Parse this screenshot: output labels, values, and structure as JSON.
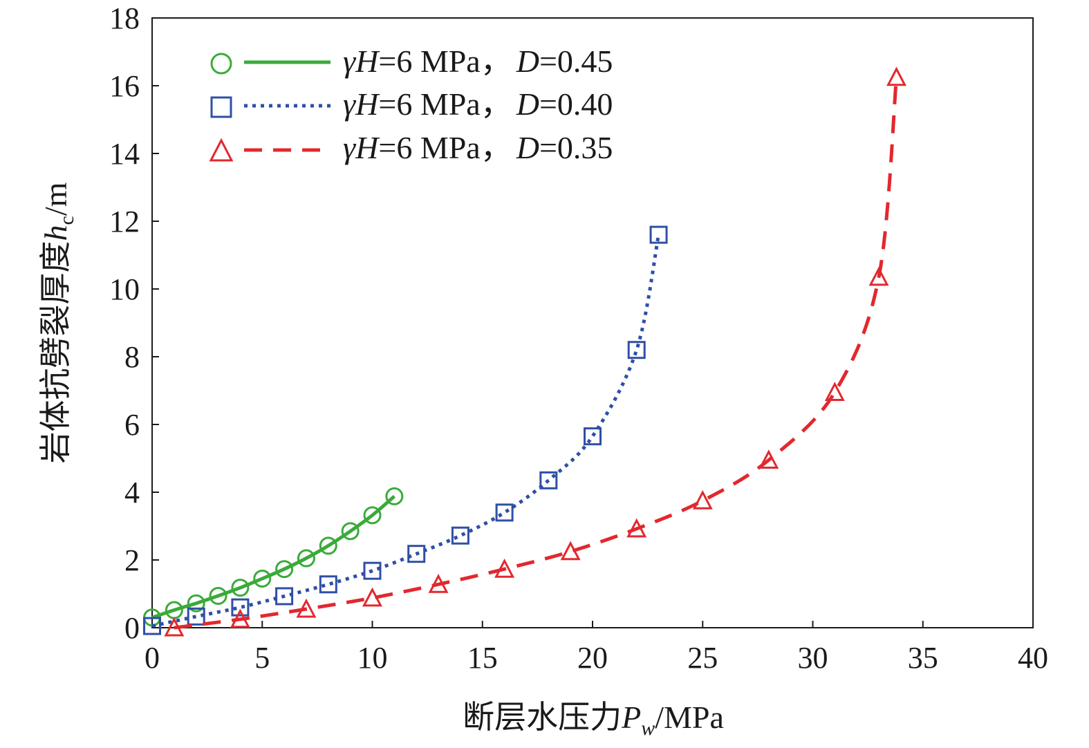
{
  "chart_data": {
    "type": "line",
    "xlabel": {
      "text": "断层水压力",
      "symbol": "P",
      "subscript": "w",
      "unit": "/MPa"
    },
    "ylabel": {
      "text": "岩体抗劈裂厚度",
      "symbol": "h",
      "subscript": "c",
      "unit": "/m"
    },
    "xlim": [
      0,
      40
    ],
    "ylim": [
      0,
      18
    ],
    "xticks": [
      0,
      5,
      10,
      15,
      20,
      25,
      30,
      35,
      40
    ],
    "yticks": [
      0,
      2,
      4,
      6,
      8,
      10,
      12,
      14,
      16,
      18
    ],
    "grid": false,
    "legend_position": "top-left",
    "series": [
      {
        "name": "γH=6 MPa，D=0.45",
        "legend": {
          "p1": "γ",
          "p2": "H",
          "p3": "=6 MPa，",
          "p4": "D",
          "p5": "=0.45"
        },
        "color": "#3aaa3a",
        "marker": "circle",
        "line_style": "solid",
        "x": [
          0,
          1,
          2,
          3,
          4,
          5,
          6,
          7,
          8,
          9,
          10,
          11
        ],
        "y": [
          0.3,
          0.52,
          0.72,
          0.94,
          1.18,
          1.45,
          1.73,
          2.05,
          2.42,
          2.85,
          3.32,
          3.88
        ]
      },
      {
        "name": "γH=6 MPa，D=0.40",
        "legend": {
          "p1": "γ",
          "p2": "H",
          "p3": "=6 MPa，",
          "p4": "D",
          "p5": "=0.40"
        },
        "color": "#2f4fa6",
        "marker": "square",
        "line_style": "dotted",
        "x": [
          0,
          2,
          4,
          6,
          8,
          10,
          12,
          14,
          16,
          18,
          20,
          22,
          23
        ],
        "y": [
          0.05,
          0.33,
          0.6,
          0.93,
          1.28,
          1.68,
          2.18,
          2.72,
          3.4,
          4.35,
          5.65,
          8.2,
          11.6
        ]
      },
      {
        "name": "γH=6 MPa，D=0.35",
        "legend": {
          "p1": "γ",
          "p2": "H",
          "p3": "=6 MPa，",
          "p4": "D",
          "p5": "=0.35"
        },
        "color": "#e2282e",
        "marker": "triangle",
        "line_style": "dashed",
        "x": [
          1,
          4,
          7,
          10,
          13,
          16,
          19,
          22,
          25,
          28,
          31,
          33,
          33.8
        ],
        "y": [
          0.0,
          0.25,
          0.55,
          0.88,
          1.28,
          1.73,
          2.25,
          2.92,
          3.75,
          4.95,
          6.95,
          10.35,
          16.25
        ]
      }
    ]
  }
}
